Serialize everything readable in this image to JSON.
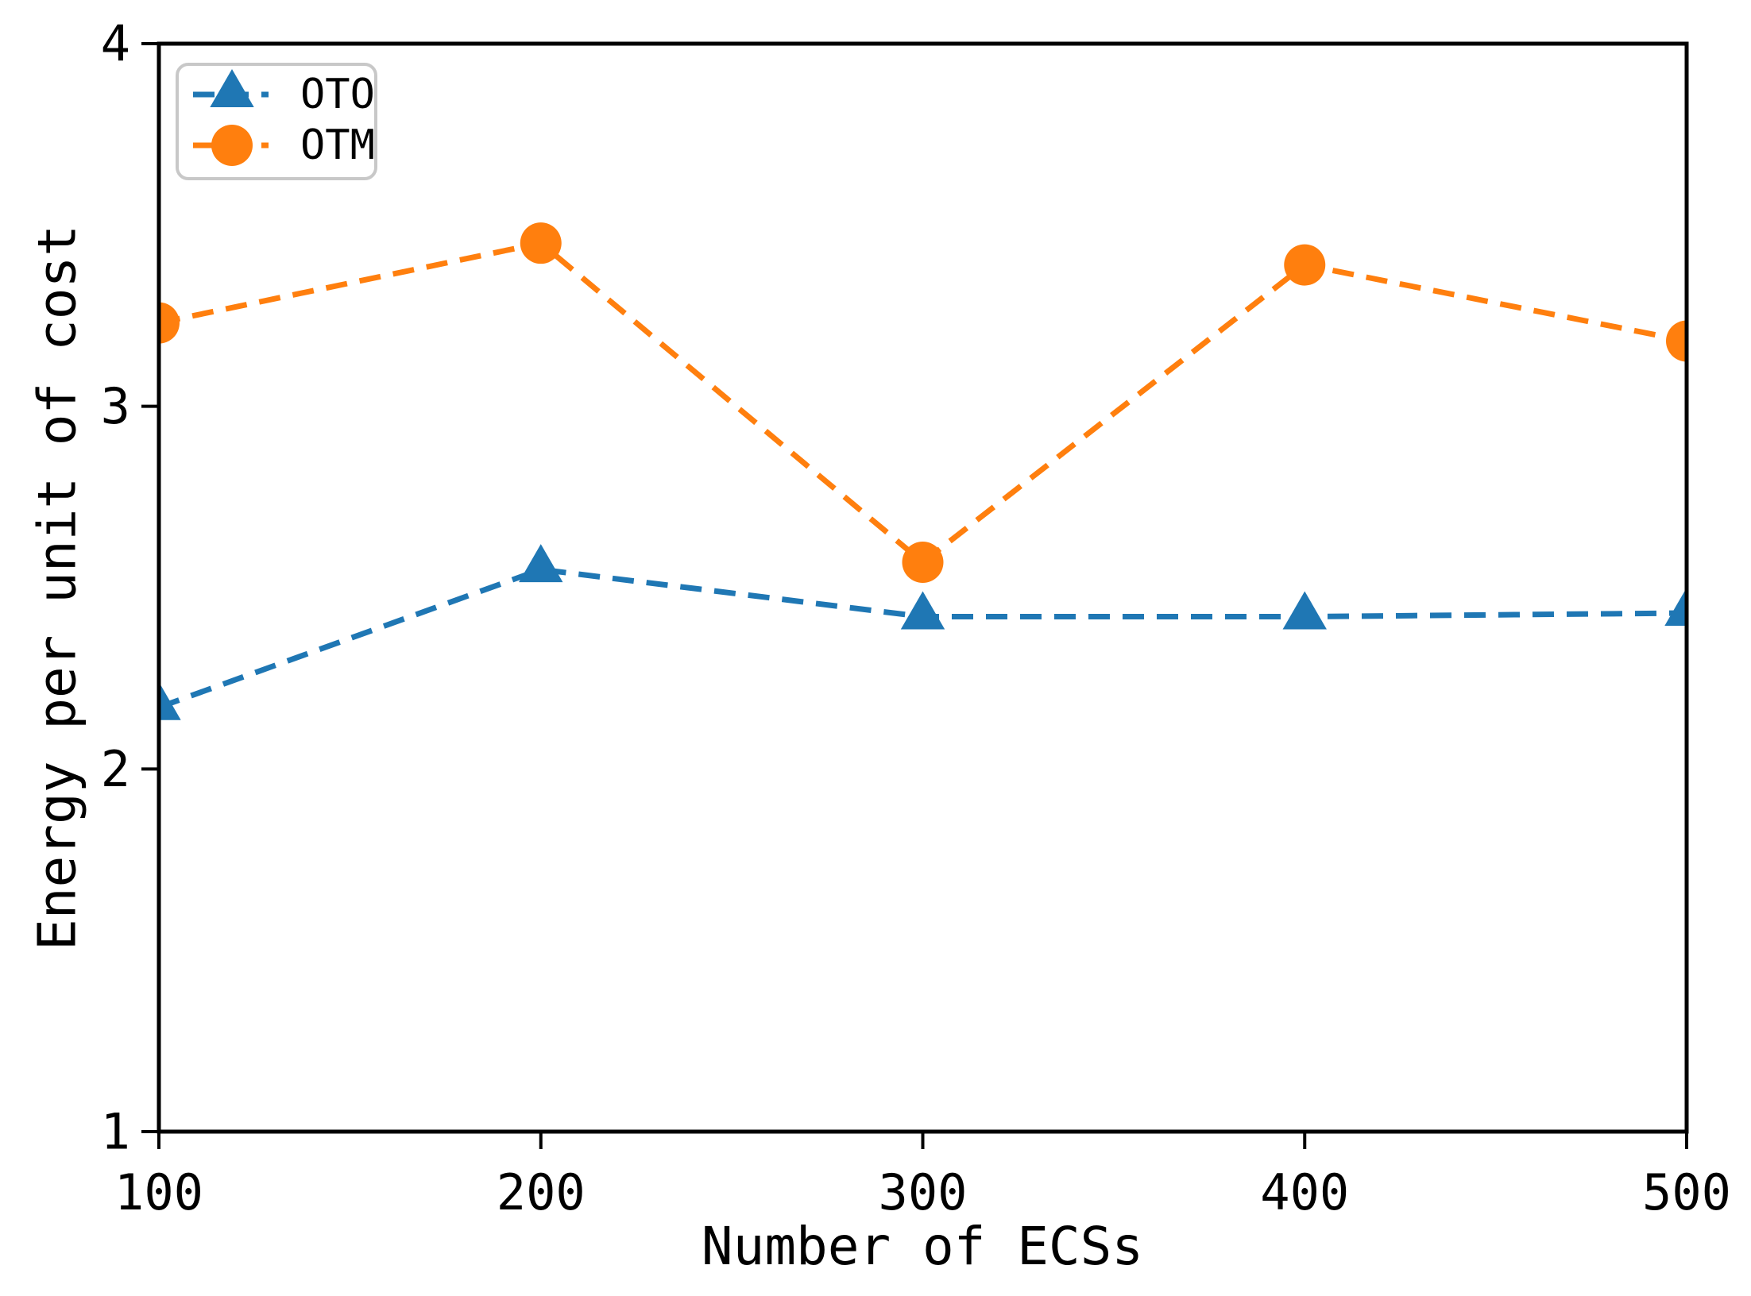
{
  "chart_data": {
    "type": "line",
    "x": [
      100,
      200,
      300,
      400,
      500
    ],
    "series": [
      {
        "name": "OTO",
        "color": "#1f77b4",
        "marker": "triangle",
        "linestyle": "dashed",
        "values": [
          2.17,
          2.55,
          2.42,
          2.42,
          2.43
        ]
      },
      {
        "name": "OTM",
        "color": "#ff7f0e",
        "marker": "circle",
        "linestyle": "dashed",
        "values": [
          3.23,
          3.45,
          2.57,
          3.39,
          3.18
        ]
      }
    ],
    "title": "",
    "xlabel": "Number of ECSs",
    "ylabel": "Energy per unit of cost",
    "xlim": [
      100,
      500
    ],
    "ylim": [
      1,
      4
    ],
    "xticks": [
      100,
      200,
      300,
      400,
      500
    ],
    "yticks": [
      1,
      2,
      3,
      4
    ],
    "grid": false,
    "legend": {
      "position": "upper-left",
      "border_color": "#c8c8c8",
      "items": [
        "OTO",
        "OTM"
      ]
    }
  }
}
